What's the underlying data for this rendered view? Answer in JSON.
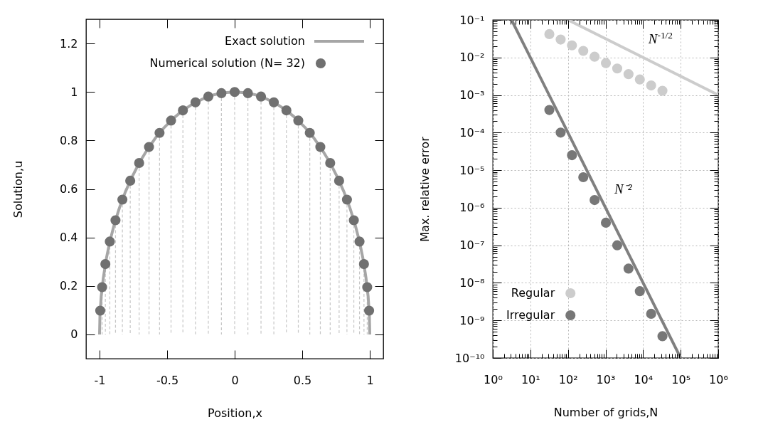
{
  "chart_data": [
    {
      "type": "line",
      "xlabel": "Position,x",
      "ylabel": "Solution,u",
      "xlim": [
        -1.1,
        1.1
      ],
      "xticks": [
        -1,
        -0.5,
        0,
        0.5,
        1
      ],
      "ylim": [
        -0.1,
        1.3
      ],
      "yticks": [
        0,
        0.2,
        0.4,
        0.6,
        0.8,
        1,
        1.2
      ],
      "legend": "top right",
      "series": [
        {
          "name": "Exact solution",
          "color": "#a6a6a6",
          "x": [
            -1,
            -0.997,
            -0.988,
            -0.972,
            -0.951,
            -0.924,
            -0.891,
            -0.853,
            -0.809,
            -0.76,
            -0.707,
            -0.649,
            -0.588,
            -0.522,
            -0.454,
            -0.383,
            -0.309,
            -0.233,
            -0.156,
            -0.078,
            0,
            0.078,
            0.156,
            0.233,
            0.309,
            0.383,
            0.454,
            0.522,
            0.588,
            0.649,
            0.707,
            0.76,
            0.809,
            0.853,
            0.891,
            0.924,
            0.951,
            0.972,
            0.988,
            0.997,
            1
          ],
          "values": [
            0,
            0.078,
            0.156,
            0.233,
            0.309,
            0.383,
            0.454,
            0.522,
            0.588,
            0.649,
            0.707,
            0.76,
            0.809,
            0.853,
            0.891,
            0.924,
            0.951,
            0.972,
            0.988,
            0.997,
            1,
            0.997,
            0.988,
            0.972,
            0.951,
            0.924,
            0.891,
            0.853,
            0.809,
            0.76,
            0.707,
            0.649,
            0.588,
            0.522,
            0.454,
            0.383,
            0.309,
            0.233,
            0.156,
            0.078,
            0
          ]
        },
        {
          "name": "Numerical solution (N= 32)",
          "type": "lollipop",
          "color": "#707070",
          "line_style": "dashed",
          "marker": "circle",
          "x": [
            -0.995,
            -0.981,
            -0.957,
            -0.924,
            -0.882,
            -0.831,
            -0.773,
            -0.707,
            -0.634,
            -0.556,
            -0.471,
            -0.383,
            -0.29,
            -0.195,
            -0.098,
            0,
            0.098,
            0.195,
            0.29,
            0.383,
            0.471,
            0.556,
            0.634,
            0.707,
            0.773,
            0.831,
            0.882,
            0.924,
            0.957,
            0.981,
            0.995
          ],
          "values": [
            0.098,
            0.195,
            0.29,
            0.383,
            0.471,
            0.556,
            0.634,
            0.707,
            0.773,
            0.831,
            0.882,
            0.924,
            0.957,
            0.981,
            0.995,
            1,
            0.995,
            0.981,
            0.957,
            0.924,
            0.882,
            0.831,
            0.773,
            0.707,
            0.634,
            0.556,
            0.471,
            0.383,
            0.29,
            0.195,
            0.098
          ]
        }
      ]
    },
    {
      "type": "scatter",
      "xlabel": "Number of grids,N",
      "ylabel": "Max. relative error",
      "log": "xy",
      "xlim": [
        1,
        1000000
      ],
      "xticks": [
        {
          "value": 1,
          "label": "10⁰"
        },
        {
          "value": 2,
          "label": null
        },
        {
          "value": 3,
          "label": null
        },
        {
          "value": 4,
          "label": null
        },
        {
          "value": 5,
          "label": null
        },
        {
          "value": 6,
          "label": null
        },
        {
          "value": 7,
          "label": null
        },
        {
          "value": 8,
          "label": null
        },
        {
          "value": 9,
          "label": null
        },
        {
          "value": 10,
          "label": "10¹"
        },
        {
          "value": 20,
          "label": null
        },
        {
          "value": 30,
          "label": null
        },
        {
          "value": 40,
          "label": null
        },
        {
          "value": 50,
          "label": null
        },
        {
          "value": 60,
          "label": null
        },
        {
          "value": 70,
          "label": null
        },
        {
          "value": 80,
          "label": null
        },
        {
          "value": 90,
          "label": null
        },
        {
          "value": 100,
          "label": "10²"
        },
        {
          "value": 200,
          "label": null
        },
        {
          "value": 300,
          "label": null
        },
        {
          "value": 400,
          "label": null
        },
        {
          "value": 500,
          "label": null
        },
        {
          "value": 600,
          "label": null
        },
        {
          "value": 700,
          "label": null
        },
        {
          "value": 800,
          "label": null
        },
        {
          "value": 900,
          "label": null
        },
        {
          "value": 1000,
          "label": "10³"
        },
        {
          "value": 2000,
          "label": null
        },
        {
          "value": 3000,
          "label": null
        },
        {
          "value": 4000,
          "label": null
        },
        {
          "value": 5000,
          "label": null
        },
        {
          "value": 6000,
          "label": null
        },
        {
          "value": 7000,
          "label": null
        },
        {
          "value": 8000,
          "label": null
        },
        {
          "value": 9000,
          "label": null
        },
        {
          "value": 10000,
          "label": "10⁴"
        },
        {
          "value": 20000,
          "label": null
        },
        {
          "value": 30000,
          "label": null
        },
        {
          "value": 40000,
          "label": null
        },
        {
          "value": 50000,
          "label": null
        },
        {
          "value": 60000,
          "label": null
        },
        {
          "value": 70000,
          "label": null
        },
        {
          "value": 80000,
          "label": null
        },
        {
          "value": 90000,
          "label": null
        },
        {
          "value": 100000,
          "label": "10⁵"
        },
        {
          "value": 200000,
          "label": null
        },
        {
          "value": 300000,
          "label": null
        },
        {
          "value": 400000,
          "label": null
        },
        {
          "value": 500000,
          "label": null
        },
        {
          "value": 600000,
          "label": null
        },
        {
          "value": 700000,
          "label": null
        },
        {
          "value": 800000,
          "label": null
        },
        {
          "value": 900000,
          "label": null
        },
        {
          "value": 1000000,
          "label": "10⁶"
        }
      ],
      "ylim": [
        1e-10,
        0.1
      ],
      "yticks": [
        {
          "value": 1e-10,
          "label": "10⁻¹⁰"
        },
        {
          "value": 2e-10,
          "label": null
        },
        {
          "value": 3e-10,
          "label": null
        },
        {
          "value": 4e-10,
          "label": null
        },
        {
          "value": 5e-10,
          "label": null
        },
        {
          "value": 6e-10,
          "label": null
        },
        {
          "value": 7e-10,
          "label": null
        },
        {
          "value": 8e-10,
          "label": null
        },
        {
          "value": 9e-10,
          "label": null
        },
        {
          "value": 1e-09,
          "label": "10⁻⁹"
        },
        {
          "value": 2e-09,
          "label": null
        },
        {
          "value": 3e-09,
          "label": null
        },
        {
          "value": 4e-09,
          "label": null
        },
        {
          "value": 5e-09,
          "label": null
        },
        {
          "value": 6e-09,
          "label": null
        },
        {
          "value": 7e-09,
          "label": null
        },
        {
          "value": 8e-09,
          "label": null
        },
        {
          "value": 9e-09,
          "label": null
        },
        {
          "value": 1e-08,
          "label": "10⁻⁸"
        },
        {
          "value": 2e-08,
          "label": null
        },
        {
          "value": 3e-08,
          "label": null
        },
        {
          "value": 4e-08,
          "label": null
        },
        {
          "value": 5e-08,
          "label": null
        },
        {
          "value": 6e-08,
          "label": null
        },
        {
          "value": 7e-08,
          "label": null
        },
        {
          "value": 8e-08,
          "label": null
        },
        {
          "value": 9e-08,
          "label": null
        },
        {
          "value": 1e-07,
          "label": "10⁻⁷"
        },
        {
          "value": 2e-07,
          "label": null
        },
        {
          "value": 3e-07,
          "label": null
        },
        {
          "value": 4e-07,
          "label": null
        },
        {
          "value": 5e-07,
          "label": null
        },
        {
          "value": 6e-07,
          "label": null
        },
        {
          "value": 7e-07,
          "label": null
        },
        {
          "value": 8e-07,
          "label": null
        },
        {
          "value": 9e-07,
          "label": null
        },
        {
          "value": 1e-06,
          "label": "10⁻⁶"
        },
        {
          "value": 2e-06,
          "label": null
        },
        {
          "value": 3e-06,
          "label": null
        },
        {
          "value": 4e-06,
          "label": null
        },
        {
          "value": 5e-06,
          "label": null
        },
        {
          "value": 6e-06,
          "label": null
        },
        {
          "value": 7e-06,
          "label": null
        },
        {
          "value": 8e-06,
          "label": null
        },
        {
          "value": 9e-06,
          "label": null
        },
        {
          "value": 1e-05,
          "label": "10⁻⁵"
        },
        {
          "value": 2e-05,
          "label": null
        },
        {
          "value": 3e-05,
          "label": null
        },
        {
          "value": 4e-05,
          "label": null
        },
        {
          "value": 5e-05,
          "label": null
        },
        {
          "value": 6e-05,
          "label": null
        },
        {
          "value": 7e-05,
          "label": null
        },
        {
          "value": 8e-05,
          "label": null
        },
        {
          "value": 9e-05,
          "label": null
        },
        {
          "value": 0.0001,
          "label": "10⁻⁴"
        },
        {
          "value": 0.0002,
          "label": null
        },
        {
          "value": 0.0003,
          "label": null
        },
        {
          "value": 0.0004,
          "label": null
        },
        {
          "value": 0.0005,
          "label": null
        },
        {
          "value": 0.0006,
          "label": null
        },
        {
          "value": 0.0007,
          "label": null
        },
        {
          "value": 0.0008,
          "label": null
        },
        {
          "value": 0.0009,
          "label": null
        },
        {
          "value": 0.001,
          "label": "10⁻³"
        },
        {
          "value": 0.002,
          "label": null
        },
        {
          "value": 0.003,
          "label": null
        },
        {
          "value": 0.004,
          "label": null
        },
        {
          "value": 0.005,
          "label": null
        },
        {
          "value": 0.006,
          "label": null
        },
        {
          "value": 0.007,
          "label": null
        },
        {
          "value": 0.008,
          "label": null
        },
        {
          "value": 0.009,
          "label": null
        },
        {
          "value": 0.01,
          "label": "10⁻²"
        },
        {
          "value": 0.02,
          "label": null
        },
        {
          "value": 0.03,
          "label": null
        },
        {
          "value": 0.04,
          "label": null
        },
        {
          "value": 0.05,
          "label": null
        },
        {
          "value": 0.06,
          "label": null
        },
        {
          "value": 0.07,
          "label": null
        },
        {
          "value": 0.08,
          "label": null
        },
        {
          "value": 0.09,
          "label": null
        },
        {
          "value": 0.1,
          "label": "10⁻¹"
        }
      ],
      "grid": true,
      "legend": "bottom left",
      "series": [
        {
          "name": "Regular",
          "color": "#cccccc",
          "marker": "circle",
          "x": [
            32,
            64,
            128,
            256,
            512,
            1024,
            2048,
            4096,
            8192,
            16384,
            32768
          ],
          "values": [
            0.042,
            0.03,
            0.021,
            0.015,
            0.0105,
            0.0071,
            0.0051,
            0.0036,
            0.0026,
            0.0018,
            0.0013
          ]
        },
        {
          "name": "Irregular",
          "color": "#777777",
          "marker": "circle",
          "x": [
            32,
            64,
            128,
            256,
            512,
            1024,
            2048,
            4096,
            8192,
            16384,
            32768
          ],
          "values": [
            0.0004,
            0.0001,
            2.5e-05,
            6.5e-06,
            1.6e-06,
            4e-07,
            1e-07,
            2.4e-08,
            6e-09,
            1.5e-09,
            3.8e-10
          ]
        },
        {
          "type": "line",
          "color": "#cccccc",
          "x": [
            100,
            1000000
          ],
          "values": [
            0.1,
            0.001
          ]
        },
        {
          "type": "line",
          "color": "#808080",
          "x": [
            3.16,
            100000
          ],
          "values": [
            0.1,
            1e-10
          ]
        }
      ],
      "annotations": [
        {
          "text": "N$^{-1/2}$",
          "x": 15000,
          "y": 0.0082
        },
        {
          "text": "N⁻²",
          "x": 780,
          "y": 1.6e-06
        }
      ]
    }
  ]
}
